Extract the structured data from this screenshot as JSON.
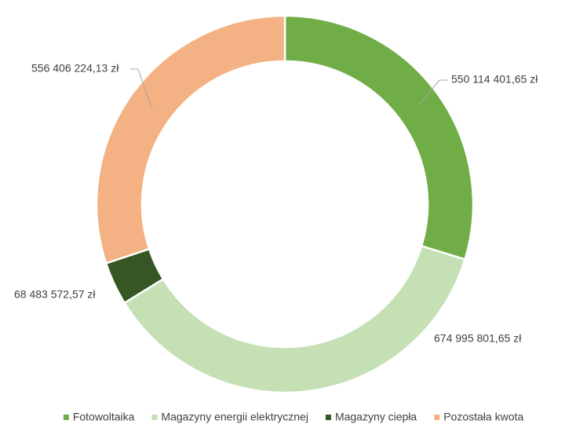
{
  "chart_data": {
    "type": "donut",
    "categories": [
      "Fotowoltaika",
      "Magazyny energii elektrycznej",
      "Magazyny ciepła",
      "Pozostała kwota"
    ],
    "values": [
      550114401.65,
      674995801.65,
      68483572.57,
      556406224.13
    ],
    "value_labels": [
      "550 114 401,65 zł",
      "674 995 801,65 zł",
      "68 483 572,57 zł",
      "556 406 224,13 zł"
    ],
    "colors": [
      "#70ad47",
      "#c5e0b4",
      "#375623",
      "#f4b183"
    ],
    "legend": "bottom"
  }
}
